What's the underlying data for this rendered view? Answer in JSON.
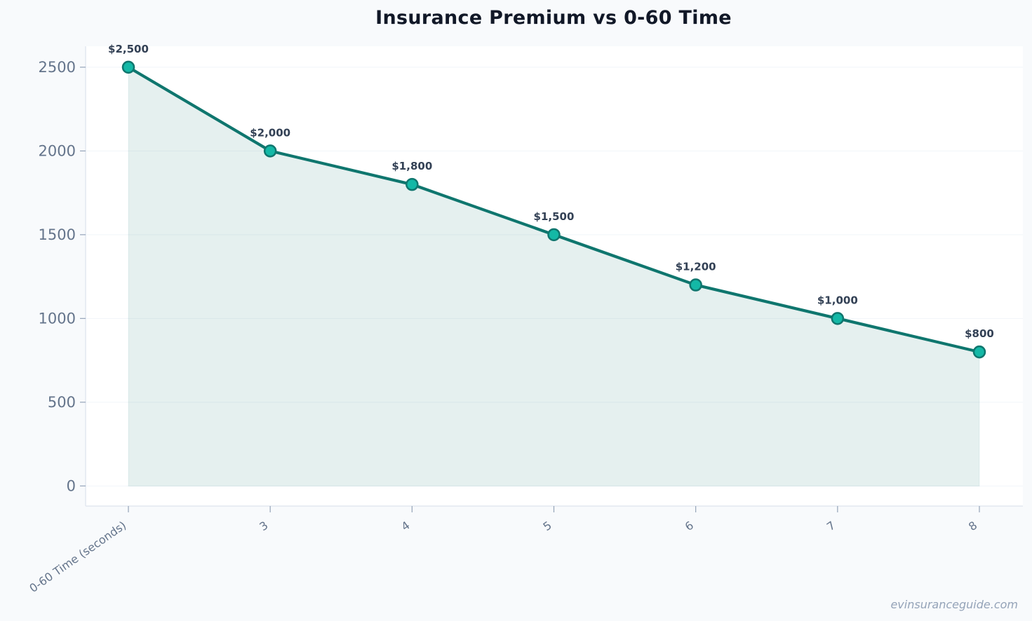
{
  "chart_data": {
    "type": "line",
    "title": "Insurance Premium vs 0-60 Time",
    "xlabel": "",
    "ylabel": "",
    "categories": [
      "0-60 Time (seconds)",
      "3",
      "4",
      "5",
      "6",
      "7",
      "8"
    ],
    "series": [
      {
        "values": [
          2500,
          2000,
          1800,
          1500,
          1200,
          1000,
          800
        ],
        "labels": [
          "$2,500",
          "$2,000",
          "$1,800",
          "$1,500",
          "$1,200",
          "$1,000",
          "$800"
        ]
      }
    ],
    "yticks": [
      0,
      500,
      1000,
      1500,
      2000,
      2500
    ],
    "ylim": [
      -120,
      2625
    ],
    "grid": true,
    "area_fill": true,
    "colors": {
      "line": "#0f766e",
      "marker_fill": "#14b8a6",
      "area": "#0f766e",
      "grid": "#f1f5f9",
      "axis": "#e2e8f0"
    }
  },
  "watermark": "evinsuranceguide.com"
}
